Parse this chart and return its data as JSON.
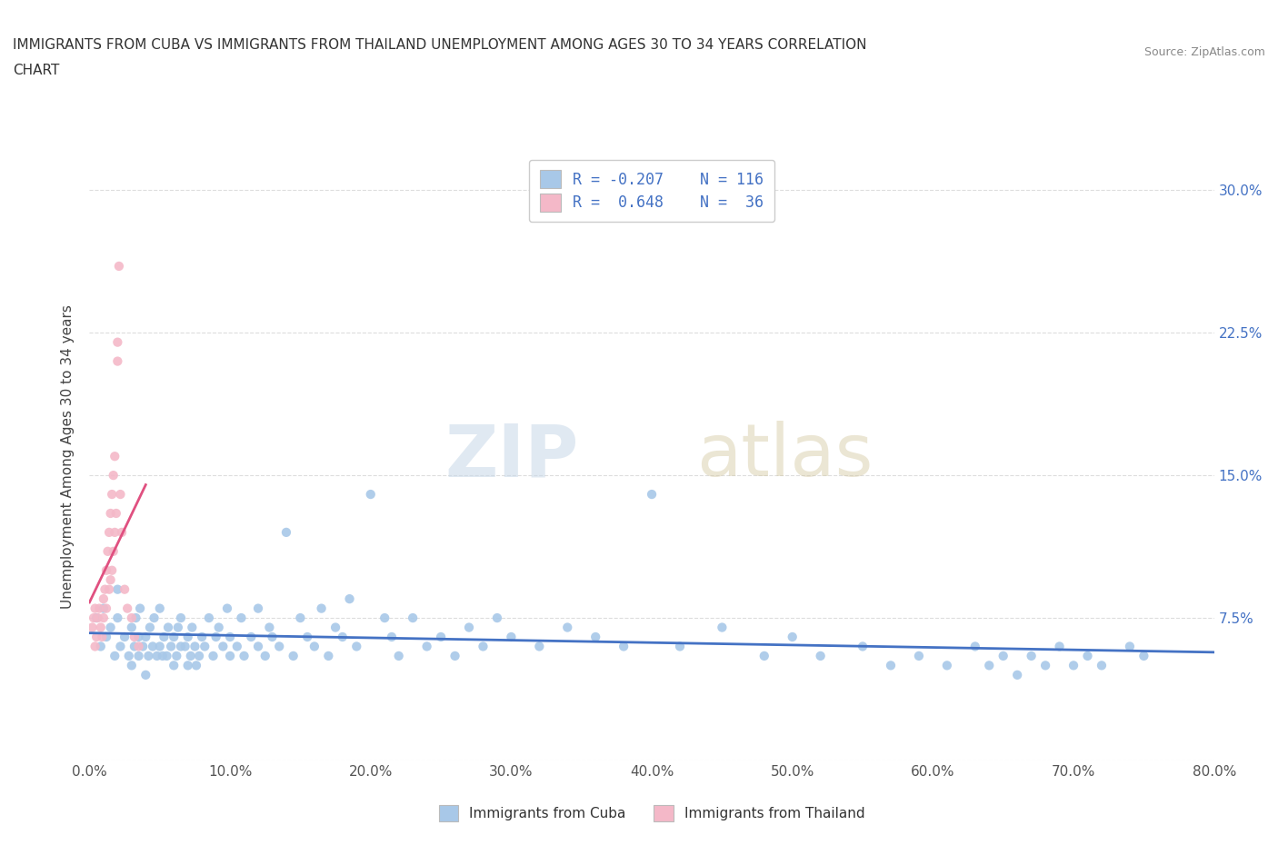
{
  "title_line1": "IMMIGRANTS FROM CUBA VS IMMIGRANTS FROM THAILAND UNEMPLOYMENT AMONG AGES 30 TO 34 YEARS CORRELATION",
  "title_line2": "CHART",
  "source_text": "Source: ZipAtlas.com",
  "ylabel": "Unemployment Among Ages 30 to 34 years",
  "xlim": [
    0.0,
    0.8
  ],
  "ylim": [
    0.0,
    0.32
  ],
  "xticks": [
    0.0,
    0.1,
    0.2,
    0.3,
    0.4,
    0.5,
    0.6,
    0.7,
    0.8
  ],
  "xticklabels": [
    "0.0%",
    "10.0%",
    "20.0%",
    "30.0%",
    "40.0%",
    "50.0%",
    "60.0%",
    "70.0%",
    "80.0%"
  ],
  "yticks": [
    0.0,
    0.075,
    0.15,
    0.225,
    0.3
  ],
  "yticklabels_right": [
    "",
    "7.5%",
    "15.0%",
    "22.5%",
    "30.0%"
  ],
  "cuba_R": -0.207,
  "cuba_N": 116,
  "thailand_R": 0.648,
  "thailand_N": 36,
  "cuba_color": "#a8c8e8",
  "cuba_line_color": "#4472c4",
  "thailand_color": "#f4b8c8",
  "thailand_line_color": "#e05080",
  "watermark_zip": "ZIP",
  "watermark_atlas": "atlas",
  "legend_label_cuba": "Immigrants from Cuba",
  "legend_label_thailand": "Immigrants from Thailand",
  "cuba_scatter_x": [
    0.005,
    0.008,
    0.01,
    0.012,
    0.015,
    0.018,
    0.02,
    0.02,
    0.022,
    0.025,
    0.028,
    0.03,
    0.03,
    0.032,
    0.033,
    0.035,
    0.035,
    0.036,
    0.038,
    0.04,
    0.04,
    0.042,
    0.043,
    0.045,
    0.046,
    0.048,
    0.05,
    0.05,
    0.052,
    0.053,
    0.055,
    0.056,
    0.058,
    0.06,
    0.06,
    0.062,
    0.063,
    0.065,
    0.065,
    0.068,
    0.07,
    0.07,
    0.072,
    0.073,
    0.075,
    0.076,
    0.078,
    0.08,
    0.082,
    0.085,
    0.088,
    0.09,
    0.092,
    0.095,
    0.098,
    0.1,
    0.1,
    0.105,
    0.108,
    0.11,
    0.115,
    0.12,
    0.12,
    0.125,
    0.128,
    0.13,
    0.135,
    0.14,
    0.145,
    0.15,
    0.155,
    0.16,
    0.165,
    0.17,
    0.175,
    0.18,
    0.185,
    0.19,
    0.2,
    0.21,
    0.215,
    0.22,
    0.23,
    0.24,
    0.25,
    0.26,
    0.27,
    0.28,
    0.29,
    0.3,
    0.32,
    0.34,
    0.36,
    0.38,
    0.4,
    0.42,
    0.45,
    0.48,
    0.5,
    0.52,
    0.55,
    0.57,
    0.59,
    0.61,
    0.63,
    0.64,
    0.65,
    0.66,
    0.67,
    0.68,
    0.69,
    0.7,
    0.71,
    0.72,
    0.74,
    0.75
  ],
  "cuba_scatter_y": [
    0.075,
    0.06,
    0.08,
    0.065,
    0.07,
    0.055,
    0.075,
    0.09,
    0.06,
    0.065,
    0.055,
    0.05,
    0.07,
    0.06,
    0.075,
    0.055,
    0.065,
    0.08,
    0.06,
    0.045,
    0.065,
    0.055,
    0.07,
    0.06,
    0.075,
    0.055,
    0.06,
    0.08,
    0.055,
    0.065,
    0.055,
    0.07,
    0.06,
    0.05,
    0.065,
    0.055,
    0.07,
    0.06,
    0.075,
    0.06,
    0.05,
    0.065,
    0.055,
    0.07,
    0.06,
    0.05,
    0.055,
    0.065,
    0.06,
    0.075,
    0.055,
    0.065,
    0.07,
    0.06,
    0.08,
    0.055,
    0.065,
    0.06,
    0.075,
    0.055,
    0.065,
    0.06,
    0.08,
    0.055,
    0.07,
    0.065,
    0.06,
    0.12,
    0.055,
    0.075,
    0.065,
    0.06,
    0.08,
    0.055,
    0.07,
    0.065,
    0.085,
    0.06,
    0.14,
    0.075,
    0.065,
    0.055,
    0.075,
    0.06,
    0.065,
    0.055,
    0.07,
    0.06,
    0.075,
    0.065,
    0.06,
    0.07,
    0.065,
    0.06,
    0.14,
    0.06,
    0.07,
    0.055,
    0.065,
    0.055,
    0.06,
    0.05,
    0.055,
    0.05,
    0.06,
    0.05,
    0.055,
    0.045,
    0.055,
    0.05,
    0.06,
    0.05,
    0.055,
    0.05,
    0.06,
    0.055
  ],
  "thailand_scatter_x": [
    0.002,
    0.003,
    0.004,
    0.004,
    0.005,
    0.006,
    0.007,
    0.008,
    0.009,
    0.01,
    0.01,
    0.011,
    0.012,
    0.012,
    0.013,
    0.014,
    0.014,
    0.015,
    0.015,
    0.016,
    0.016,
    0.017,
    0.017,
    0.018,
    0.018,
    0.019,
    0.02,
    0.02,
    0.021,
    0.022,
    0.023,
    0.025,
    0.027,
    0.03,
    0.032,
    0.035
  ],
  "thailand_scatter_y": [
    0.07,
    0.075,
    0.06,
    0.08,
    0.065,
    0.075,
    0.08,
    0.07,
    0.065,
    0.075,
    0.085,
    0.09,
    0.08,
    0.1,
    0.11,
    0.09,
    0.12,
    0.095,
    0.13,
    0.1,
    0.14,
    0.11,
    0.15,
    0.12,
    0.16,
    0.13,
    0.21,
    0.22,
    0.26,
    0.14,
    0.12,
    0.09,
    0.08,
    0.075,
    0.065,
    0.06
  ]
}
